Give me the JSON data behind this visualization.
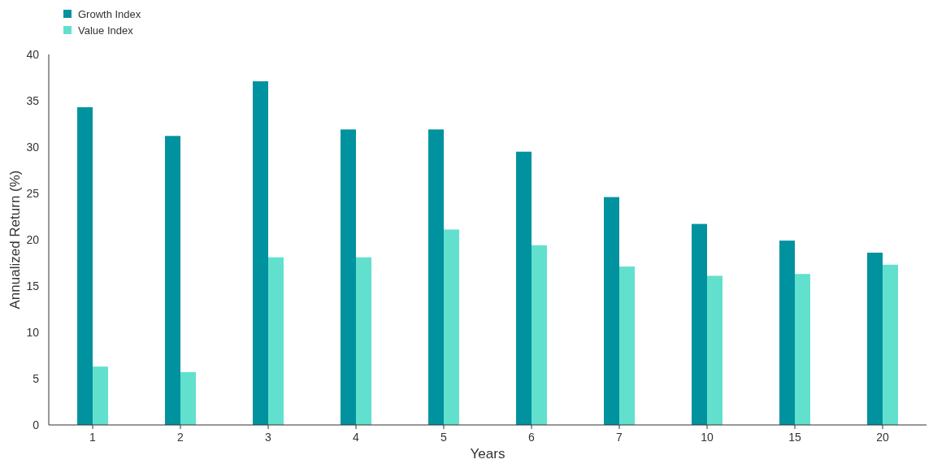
{
  "chart_data": {
    "type": "bar",
    "xlabel": "Years",
    "ylabel": "Annualized Return (%)",
    "categories": [
      "1",
      "2",
      "3",
      "4",
      "5",
      "6",
      "7",
      "10",
      "15",
      "20"
    ],
    "series": [
      {
        "name": "Growth Index",
        "color": "#00929f",
        "values": [
          34.3,
          31.2,
          37.1,
          31.9,
          31.9,
          29.5,
          24.6,
          21.7,
          19.9,
          18.6
        ]
      },
      {
        "name": "Value Index",
        "color": "#62e0ce",
        "values": [
          6.3,
          5.7,
          18.1,
          18.1,
          21.1,
          19.4,
          17.1,
          16.1,
          16.3,
          17.3
        ]
      }
    ],
    "ylim": [
      0,
      40
    ],
    "yticks": [
      0,
      5,
      10,
      15,
      20,
      25,
      30,
      35,
      40
    ],
    "grid": false,
    "legend": "top left"
  }
}
